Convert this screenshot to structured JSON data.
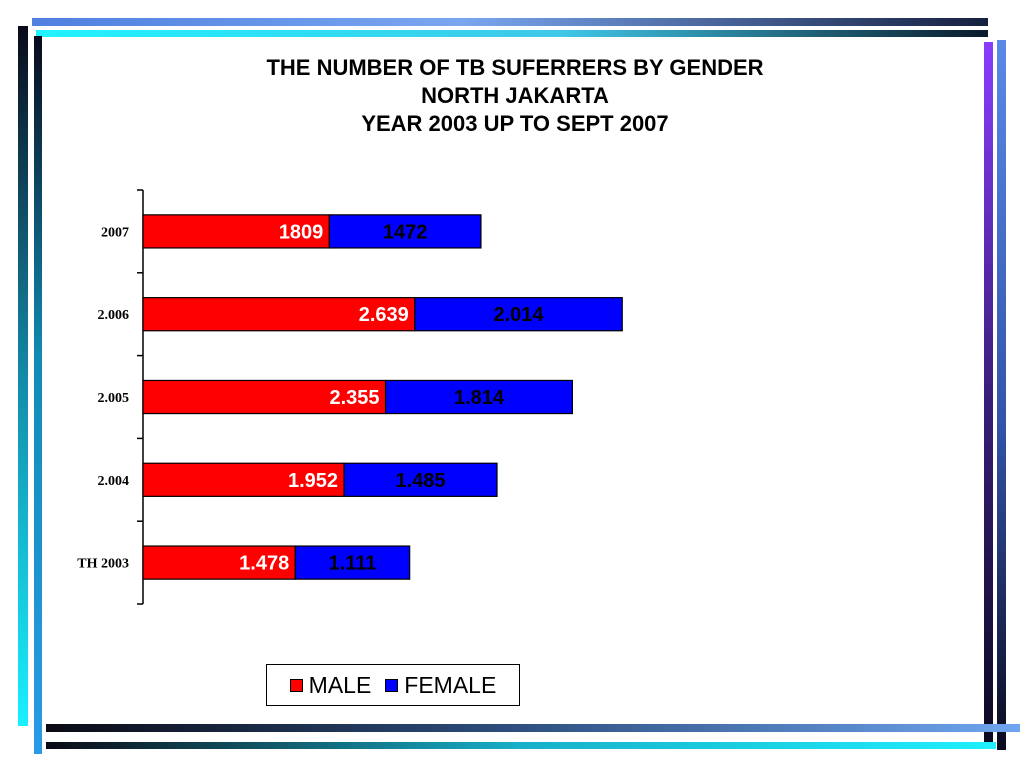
{
  "chart_data": {
    "type": "bar",
    "orientation": "horizontal",
    "stacked": true,
    "title": [
      "THE NUMBER OF TB SUFERRERS BY GENDER",
      "NORTH JAKARTA",
      "YEAR 2003 UP TO SEPT 2007"
    ],
    "categories": [
      "2007",
      "2.006",
      "2.005",
      "2.004",
      "TH 2003"
    ],
    "series": [
      {
        "name": "MALE",
        "color": "#ff0000",
        "label_color": "#ffffff",
        "values": [
          1809,
          2639,
          2355,
          1952,
          1478
        ],
        "labels": [
          "1809",
          "2.639",
          "2.355",
          "1.952",
          "1.478"
        ]
      },
      {
        "name": "FEMALE",
        "color": "#0000ff",
        "label_color": "#000000",
        "values": [
          1472,
          2014,
          1814,
          1485,
          1111
        ],
        "labels": [
          "1472",
          "2.014",
          "1.814",
          "1.485",
          "1.111"
        ]
      }
    ],
    "xlim": [
      0,
      10000
    ],
    "legend_position": "bottom",
    "grid": false
  }
}
